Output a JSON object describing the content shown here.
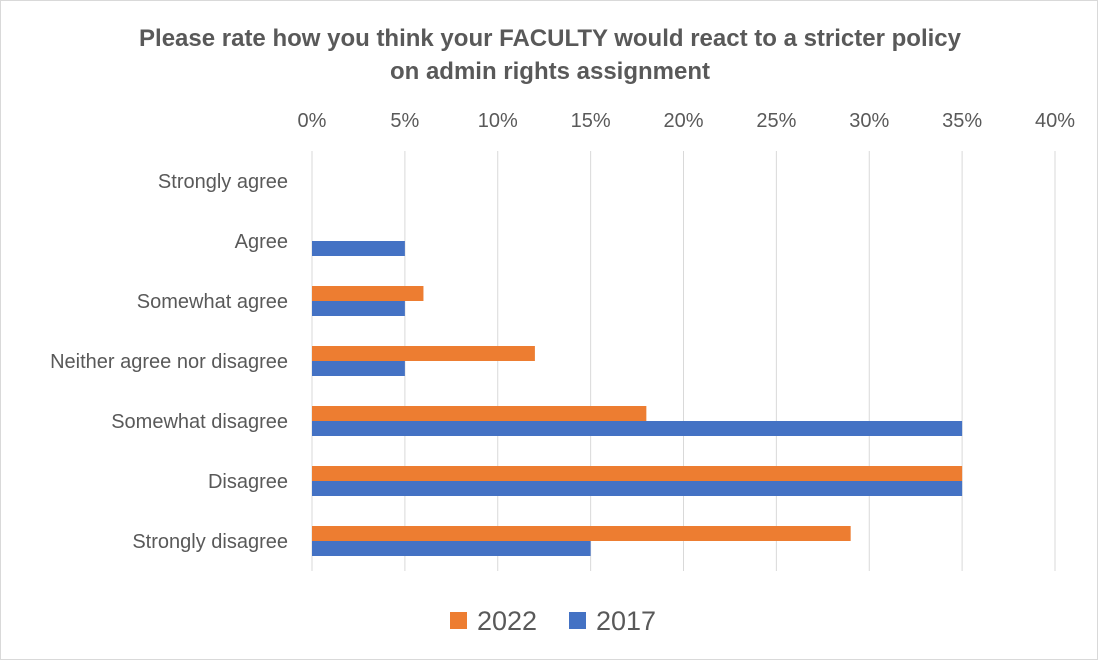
{
  "chart_data": {
    "type": "bar",
    "orientation": "horizontal",
    "title": "Please rate how you think your FACULTY would react to a stricter policy on admin rights assignment",
    "title_lines": [
      "Please rate how you think your FACULTY would react to a stricter policy",
      "on admin rights assignment"
    ],
    "categories": [
      "Strongly agree",
      "Agree",
      "Somewhat agree",
      "Neither agree nor disagree",
      "Somewhat disagree",
      "Disagree",
      "Strongly disagree"
    ],
    "series": [
      {
        "name": "2022",
        "color": "#ED7D31",
        "values": [
          0,
          0,
          6,
          12,
          18,
          35,
          29
        ]
      },
      {
        "name": "2017",
        "color": "#4472C4",
        "values": [
          0,
          5,
          5,
          5,
          35,
          35,
          15
        ]
      }
    ],
    "xlim": [
      0,
      40
    ],
    "xticks": [
      "0%",
      "5%",
      "10%",
      "15%",
      "20%",
      "25%",
      "30%",
      "35%",
      "40%"
    ],
    "xlabel": "",
    "ylabel": "",
    "axis_position": "top",
    "grid": true,
    "legend_position": "bottom"
  }
}
